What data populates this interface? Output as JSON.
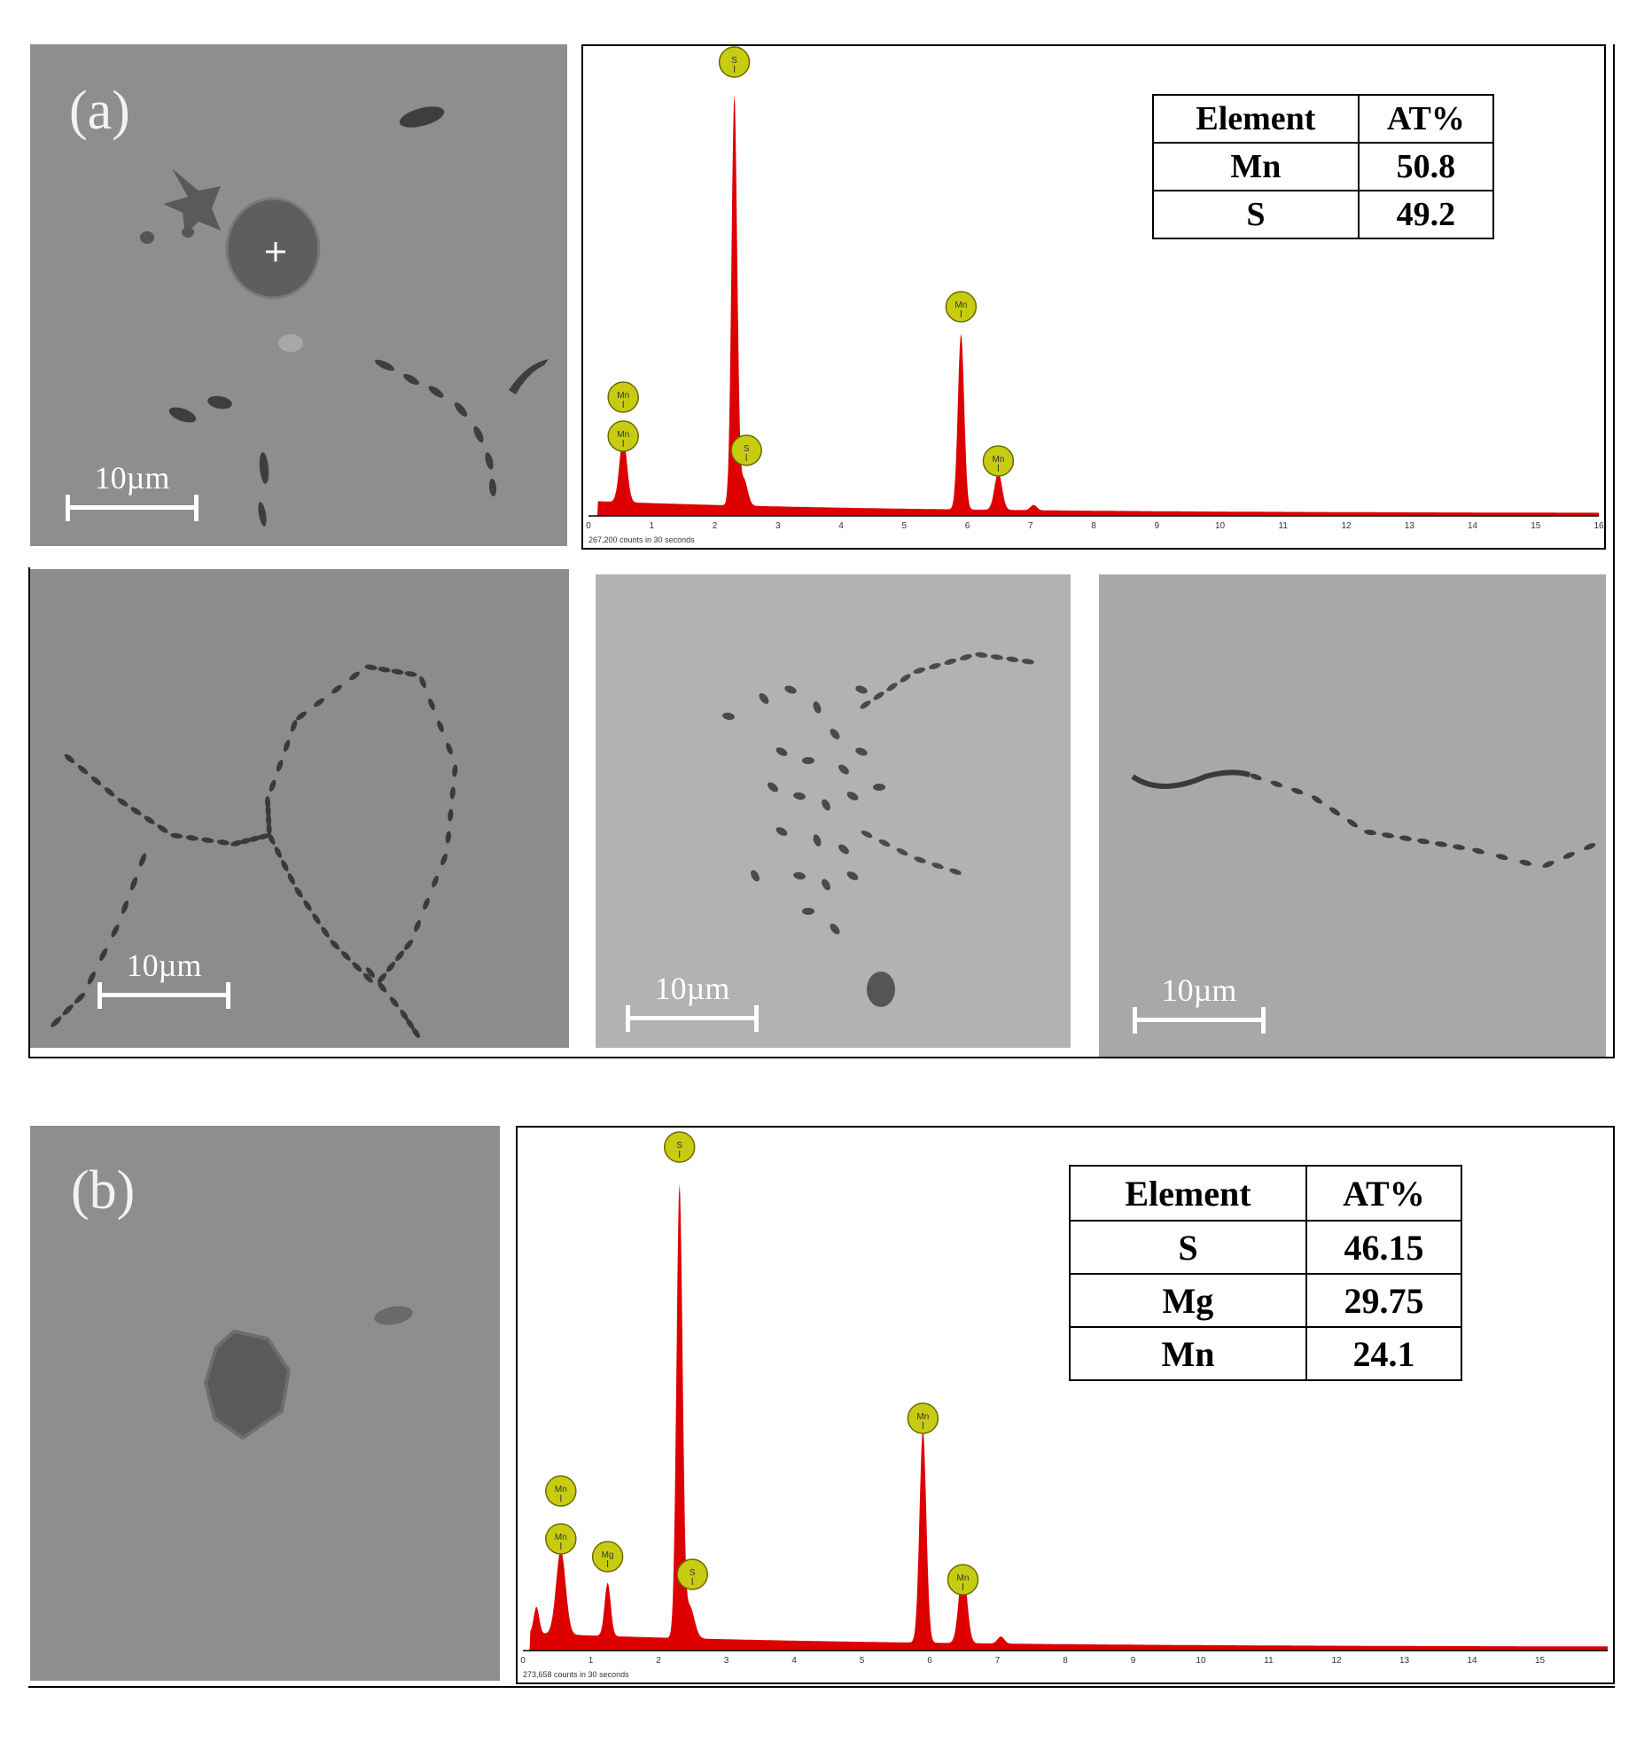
{
  "panel_a": {
    "label": "(a)",
    "scale_bars": [
      "10µm",
      "10µm",
      "10µm",
      "10µm"
    ],
    "table": {
      "headers": [
        "Element",
        "AT%"
      ],
      "rows": [
        [
          "Mn",
          "50.8"
        ],
        [
          "S",
          "49.2"
        ]
      ]
    },
    "spectrum_caption": "267,200 counts in 30 seconds",
    "peak_labels": [
      "S",
      "Mn",
      "Mn",
      "S",
      "Mn",
      "Mn"
    ],
    "x_ticks": [
      "0",
      "1",
      "2",
      "3",
      "4",
      "5",
      "6",
      "7",
      "8",
      "9",
      "10",
      "11",
      "12",
      "13",
      "14",
      "15",
      "16"
    ]
  },
  "panel_b": {
    "label": "(b)",
    "table": {
      "headers": [
        "Element",
        "AT%"
      ],
      "rows": [
        [
          "S",
          "46.15"
        ],
        [
          "Mg",
          "29.75"
        ],
        [
          "Mn",
          "24.1"
        ]
      ]
    },
    "spectrum_caption": "273,658 counts in 30 seconds",
    "peak_labels": [
      "S",
      "Mn",
      "Mn",
      "Mg",
      "S",
      "Mn",
      "Mn"
    ],
    "x_ticks": [
      "0",
      "1",
      "2",
      "3",
      "4",
      "5",
      "6",
      "7",
      "8",
      "9",
      "10",
      "11",
      "12",
      "13",
      "14",
      "15"
    ]
  },
  "colors": {
    "spectrum_fill": "#dd0000",
    "peak_marker": "#c8cc10",
    "sem_bg": "#8a8a8a"
  }
}
